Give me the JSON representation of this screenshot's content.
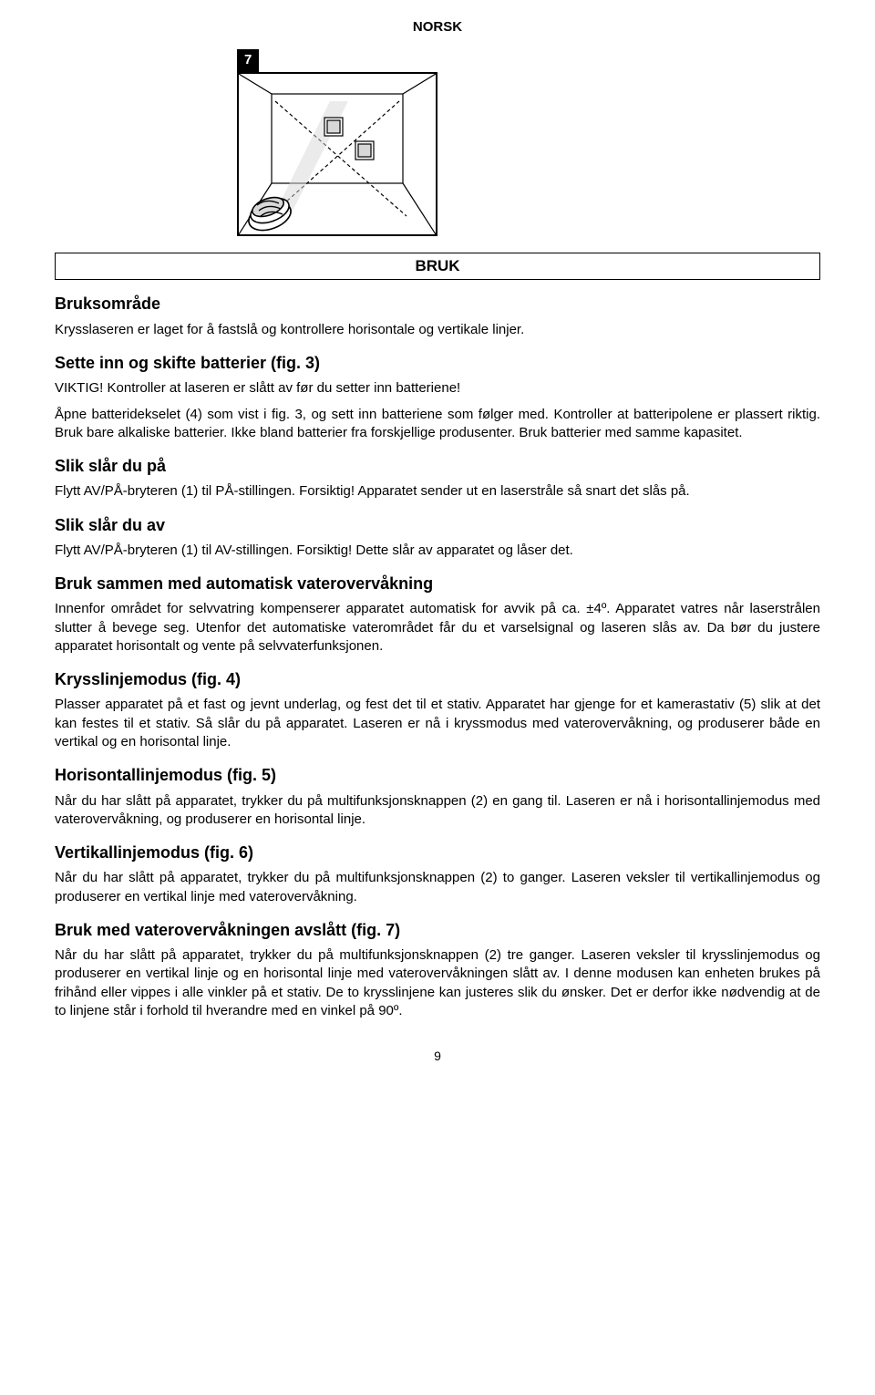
{
  "header": "NORSK",
  "figure": {
    "label": "7",
    "svg_colors": {
      "stroke": "#000000",
      "fill_light": "#d8d8d8",
      "fill_gray": "#c0c0c0",
      "bg": "#ffffff"
    }
  },
  "section_title": "BRUK",
  "sections": [
    {
      "heading": "Bruksområde",
      "paragraphs": [
        "Krysslaseren er laget for å fastslå og kontrollere horisontale og vertikale linjer."
      ]
    },
    {
      "heading": "Sette inn og skifte batterier (fig. 3)",
      "paragraphs": [
        "VIKTIG! Kontroller at laseren er slått av før du setter inn batteriene!",
        "Åpne batteridekselet (4) som vist i fig. 3, og sett inn batteriene som følger med. Kontroller at batteripolene er plassert riktig. Bruk bare alkaliske batterier. Ikke bland batterier fra forskjellige produsenter. Bruk batterier med samme kapasitet."
      ]
    },
    {
      "heading": "Slik slår du på",
      "paragraphs": [
        "Flytt AV/PÅ-bryteren (1) til PÅ-stillingen. Forsiktig! Apparatet sender ut en laserstråle så snart det slås på."
      ]
    },
    {
      "heading": "Slik slår du av",
      "paragraphs": [
        "Flytt AV/PÅ-bryteren (1) til AV-stillingen. Forsiktig! Dette slår av apparatet og låser det."
      ]
    },
    {
      "heading": "Bruk sammen med automatisk vaterovervåkning",
      "paragraphs": [
        "Innenfor området for selvvatring kompenserer apparatet automatisk for avvik på ca. ±4º. Apparatet vatres når laserstrålen slutter å bevege seg. Utenfor det automatiske vaterområdet får du et varselsignal og laseren slås av. Da bør du justere apparatet horisontalt og vente på selvvaterfunksjonen."
      ]
    },
    {
      "heading": "Krysslinjemodus (fig. 4)",
      "paragraphs": [
        "Plasser apparatet på et fast og jevnt underlag, og fest det til et stativ. Apparatet har gjenge for et kamerastativ (5) slik at det kan festes til et stativ. Så slår du på apparatet. Laseren er nå i kryssmodus med vaterovervåkning, og produserer både en vertikal og en horisontal linje."
      ]
    },
    {
      "heading": "Horisontallinjemodus (fig. 5)",
      "paragraphs": [
        "Når du har slått på apparatet, trykker du på multifunksjonsknappen (2) en gang til. Laseren er nå i horisontallinjemodus med vaterovervåkning, og produserer en horisontal linje."
      ]
    },
    {
      "heading": "Vertikallinjemodus (fig. 6)",
      "paragraphs": [
        "Når du har slått på apparatet, trykker du på multifunksjonsknappen (2) to ganger. Laseren veksler til vertikallinjemodus og produserer en vertikal linje med vaterovervåkning."
      ]
    },
    {
      "heading": "Bruk med vaterovervåkningen avslått (fig. 7)",
      "paragraphs": [
        "Når du har slått på apparatet, trykker du på multifunksjonsknappen (2) tre ganger. Laseren veksler til krysslinjemodus og produserer en vertikal linje og en horisontal linje med vaterovervåkningen slått av. I denne modusen kan enheten brukes på frihånd eller vippes i alle vinkler på et stativ. De to krysslinjene kan justeres slik du ønsker. Det er derfor ikke nødvendig at de to linjene står i forhold til hverandre med en vinkel på 90º."
      ]
    }
  ],
  "page_number": "9"
}
